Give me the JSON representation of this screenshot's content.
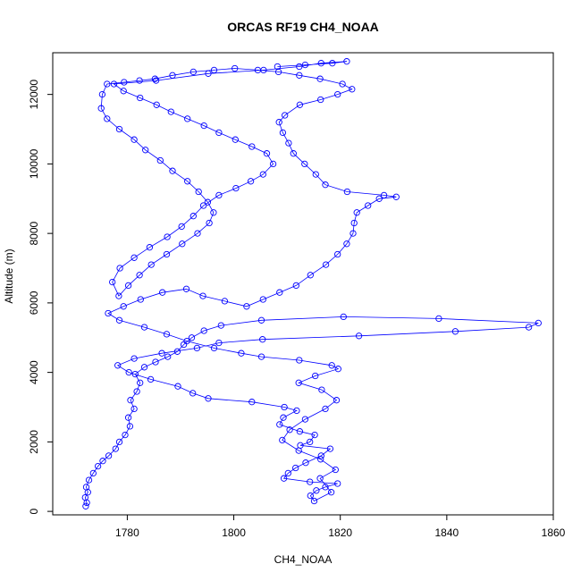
{
  "chart_data": {
    "type": "scatter",
    "title": "ORCAS RF19 CH4_NOAA",
    "xlabel": "CH4_NOAA",
    "ylabel": "Altitude (m)",
    "xlim": [
      1766,
      1860
    ],
    "ylim": [
      -100,
      13200
    ],
    "xticks": [
      1780,
      1800,
      1820,
      1840,
      1860
    ],
    "yticks": [
      0,
      2000,
      4000,
      6000,
      8000,
      10000,
      12000
    ],
    "grid": false,
    "legend": "none",
    "series": [
      {
        "color": "#0000ff",
        "marker": "open-circle",
        "line": true,
        "points": [
          [
            1772.2,
            150
          ],
          [
            1772.4,
            250
          ],
          [
            1772.1,
            400
          ],
          [
            1772.6,
            550
          ],
          [
            1772.3,
            700
          ],
          [
            1772.8,
            900
          ],
          [
            1773.6,
            1100
          ],
          [
            1774.5,
            1300
          ],
          [
            1775.4,
            1450
          ],
          [
            1776.5,
            1600
          ],
          [
            1777.8,
            1800
          ],
          [
            1778.5,
            2000
          ],
          [
            1779.6,
            2200
          ],
          [
            1780.5,
            2450
          ],
          [
            1780.2,
            2700
          ],
          [
            1781.3,
            2950
          ],
          [
            1780.6,
            3200
          ],
          [
            1781.8,
            3450
          ],
          [
            1782.4,
            3700
          ],
          [
            1781.5,
            3950
          ],
          [
            1783.2,
            4150
          ],
          [
            1785.3,
            4300
          ],
          [
            1787.6,
            4450
          ],
          [
            1789.4,
            4600
          ],
          [
            1790.6,
            4800
          ],
          [
            1792.1,
            5000
          ],
          [
            1794.4,
            5200
          ],
          [
            1797.6,
            5350
          ],
          [
            1805.2,
            5500
          ],
          [
            1820.6,
            5600
          ],
          [
            1838.5,
            5550
          ],
          [
            1857.2,
            5420
          ],
          [
            1855.4,
            5300
          ],
          [
            1841.6,
            5180
          ],
          [
            1823.5,
            5050
          ],
          [
            1805.4,
            4950
          ],
          [
            1797.2,
            4850
          ],
          [
            1793.1,
            4700
          ],
          [
            1786.5,
            4550
          ],
          [
            1781.3,
            4400
          ],
          [
            1778.2,
            4200
          ],
          [
            1780.3,
            4000
          ],
          [
            1784.4,
            3800
          ],
          [
            1789.5,
            3600
          ],
          [
            1792.3,
            3400
          ],
          [
            1795.2,
            3250
          ],
          [
            1803.4,
            3150
          ],
          [
            1809.5,
            3000
          ],
          [
            1811.8,
            2900
          ],
          [
            1809.3,
            2700
          ],
          [
            1808.6,
            2500
          ],
          [
            1812.4,
            2300
          ],
          [
            1815.2,
            2200
          ],
          [
            1814.3,
            2000
          ],
          [
            1812.5,
            1900
          ],
          [
            1818.1,
            1800
          ],
          [
            1816.4,
            1600
          ],
          [
            1813.5,
            1400
          ],
          [
            1811.6,
            1250
          ],
          [
            1810.2,
            1100
          ],
          [
            1809.4,
            950
          ],
          [
            1814.3,
            850
          ],
          [
            1819.5,
            800
          ],
          [
            1817.2,
            700
          ],
          [
            1815.5,
            600
          ],
          [
            1814.4,
            450
          ],
          [
            1815.1,
            300
          ],
          [
            1818.3,
            550
          ],
          [
            1816.2,
            950
          ],
          [
            1819.1,
            1200
          ],
          [
            1816.3,
            1500
          ],
          [
            1812.2,
            1750
          ],
          [
            1809.1,
            2050
          ],
          [
            1810.5,
            2350
          ],
          [
            1813.4,
            2650
          ],
          [
            1817.2,
            2950
          ],
          [
            1819.3,
            3200
          ],
          [
            1816.5,
            3500
          ],
          [
            1812.2,
            3700
          ],
          [
            1815.3,
            3900
          ],
          [
            1819.6,
            4100
          ],
          [
            1818.4,
            4200
          ],
          [
            1812.3,
            4350
          ],
          [
            1805.2,
            4450
          ],
          [
            1801.4,
            4550
          ],
          [
            1796.3,
            4700
          ],
          [
            1791.2,
            4900
          ],
          [
            1787.4,
            5100
          ],
          [
            1783.2,
            5300
          ],
          [
            1778.5,
            5500
          ],
          [
            1776.4,
            5700
          ],
          [
            1779.3,
            5900
          ],
          [
            1782.5,
            6100
          ],
          [
            1786.6,
            6300
          ],
          [
            1791.1,
            6400
          ],
          [
            1794.2,
            6200
          ],
          [
            1798.3,
            6050
          ],
          [
            1802.4,
            5900
          ],
          [
            1805.5,
            6100
          ],
          [
            1808.6,
            6300
          ],
          [
            1811.7,
            6500
          ],
          [
            1814.4,
            6800
          ],
          [
            1817.3,
            7100
          ],
          [
            1819.5,
            7400
          ],
          [
            1821.2,
            7700
          ],
          [
            1822.4,
            8000
          ],
          [
            1822.6,
            8300
          ],
          [
            1823.1,
            8600
          ],
          [
            1825.2,
            8800
          ],
          [
            1827.3,
            9000
          ],
          [
            1830.5,
            9050
          ],
          [
            1828.2,
            9100
          ],
          [
            1821.3,
            9200
          ],
          [
            1817.2,
            9400
          ],
          [
            1815.4,
            9700
          ],
          [
            1813.3,
            10000
          ],
          [
            1811.2,
            10300
          ],
          [
            1810.3,
            10600
          ],
          [
            1809.2,
            10900
          ],
          [
            1808.5,
            11200
          ],
          [
            1809.6,
            11400
          ],
          [
            1812.4,
            11700
          ],
          [
            1816.3,
            11850
          ],
          [
            1819.5,
            12000
          ],
          [
            1822.2,
            12150
          ],
          [
            1820.4,
            12300
          ],
          [
            1816.2,
            12450
          ],
          [
            1812.3,
            12550
          ],
          [
            1808.4,
            12650
          ],
          [
            1804.5,
            12700
          ],
          [
            1800.2,
            12750
          ],
          [
            1796.3,
            12700
          ],
          [
            1792.4,
            12650
          ],
          [
            1788.5,
            12550
          ],
          [
            1785.2,
            12450
          ],
          [
            1782.3,
            12400
          ],
          [
            1779.4,
            12350
          ],
          [
            1776.2,
            12300
          ],
          [
            1775.3,
            12000
          ],
          [
            1775.1,
            11600
          ],
          [
            1776.2,
            11300
          ],
          [
            1778.5,
            11000
          ],
          [
            1781.3,
            10700
          ],
          [
            1783.4,
            10400
          ],
          [
            1786.2,
            10100
          ],
          [
            1788.5,
            9800
          ],
          [
            1791.3,
            9500
          ],
          [
            1793.4,
            9200
          ],
          [
            1795.1,
            8900
          ],
          [
            1796.2,
            8600
          ],
          [
            1795.4,
            8300
          ],
          [
            1793.2,
            8000
          ],
          [
            1790.3,
            7700
          ],
          [
            1787.4,
            7400
          ],
          [
            1784.5,
            7100
          ],
          [
            1782.3,
            6800
          ],
          [
            1780.2,
            6500
          ],
          [
            1778.4,
            6200
          ],
          [
            1777.2,
            6600
          ],
          [
            1778.6,
            7000
          ],
          [
            1781.3,
            7300
          ],
          [
            1784.2,
            7600
          ],
          [
            1787.5,
            7900
          ],
          [
            1790.2,
            8200
          ],
          [
            1792.4,
            8500
          ],
          [
            1794.3,
            8800
          ],
          [
            1797.2,
            9100
          ],
          [
            1800.4,
            9300
          ],
          [
            1803.2,
            9500
          ],
          [
            1805.5,
            9700
          ],
          [
            1807.4,
            10000
          ],
          [
            1806.2,
            10300
          ],
          [
            1803.4,
            10500
          ],
          [
            1800.3,
            10700
          ],
          [
            1797.2,
            10900
          ],
          [
            1794.4,
            11100
          ],
          [
            1791.3,
            11300
          ],
          [
            1788.2,
            11500
          ],
          [
            1785.5,
            11700
          ],
          [
            1782.4,
            11900
          ],
          [
            1779.3,
            12100
          ],
          [
            1777.5,
            12300
          ],
          [
            1785.4,
            12400
          ],
          [
            1795.2,
            12600
          ],
          [
            1805.6,
            12700
          ],
          [
            1812.3,
            12800
          ],
          [
            1816.4,
            12900
          ],
          [
            1821.2,
            12950
          ],
          [
            1818.5,
            12900
          ],
          [
            1813.4,
            12850
          ],
          [
            1808.2,
            12800
          ]
        ]
      }
    ]
  }
}
